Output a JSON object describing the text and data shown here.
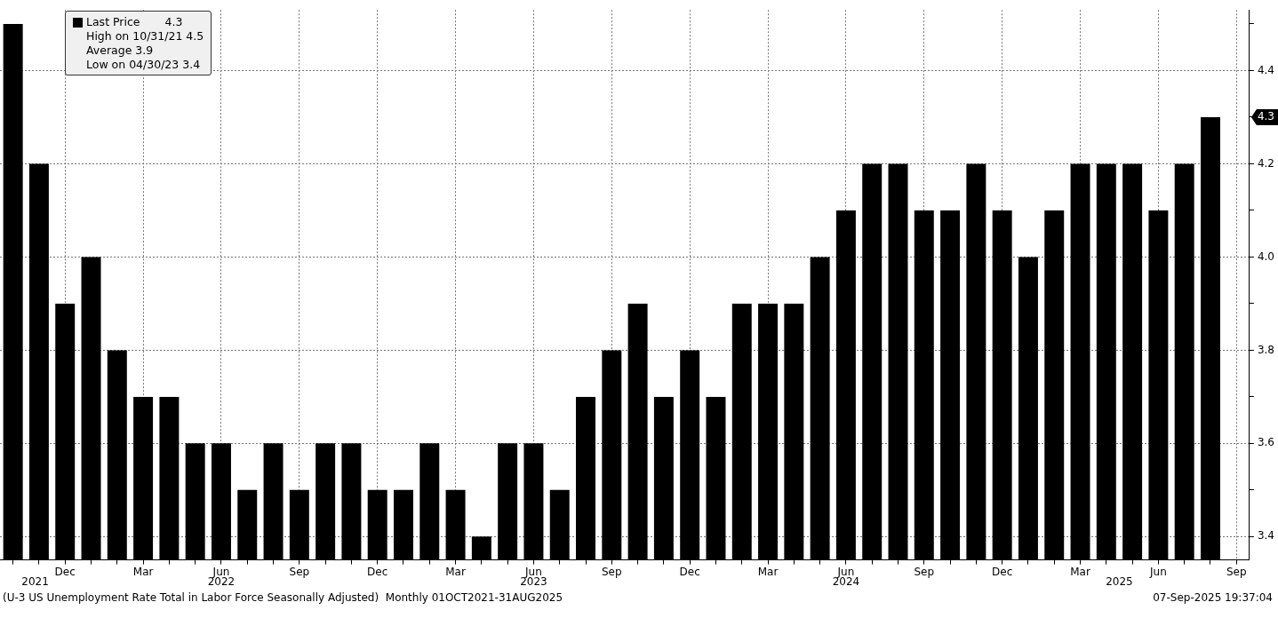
{
  "chart_data": {
    "type": "bar",
    "categories": [
      null,
      null,
      "Dec",
      null,
      null,
      "Mar",
      null,
      null,
      "Jun",
      null,
      null,
      "Sep",
      null,
      null,
      "Dec",
      null,
      null,
      "Mar",
      null,
      null,
      "Jun",
      null,
      null,
      "Sep",
      null,
      null,
      "Dec",
      null,
      null,
      "Mar",
      null,
      null,
      "Jun",
      null,
      null,
      "Sep",
      null,
      null,
      "Dec",
      null,
      null,
      "Mar",
      null,
      null,
      "Jun",
      null,
      null,
      "Sep"
    ],
    "series": [
      {
        "name": "Last Price",
        "color": "#000000",
        "values": [
          4.5,
          4.2,
          3.9,
          4.0,
          3.8,
          3.7,
          3.7,
          3.6,
          3.6,
          3.5,
          3.6,
          3.5,
          3.6,
          3.6,
          3.5,
          3.5,
          3.6,
          3.5,
          3.4,
          3.6,
          3.6,
          3.5,
          3.7,
          3.8,
          3.9,
          3.7,
          3.8,
          3.7,
          3.9,
          3.9,
          3.9,
          4.0,
          4.1,
          4.2,
          4.2,
          4.1,
          4.1,
          4.2,
          4.1,
          4.0,
          4.1,
          4.2,
          4.2,
          4.2,
          4.1,
          4.2,
          4.3,
          null
        ]
      }
    ],
    "ylim": [
      3.35,
      4.53
    ],
    "yticks": [
      {
        "value": 3.4,
        "label": "3.4"
      },
      {
        "value": 3.5,
        "label": null
      },
      {
        "value": 3.6,
        "label": "3.6"
      },
      {
        "value": 3.7,
        "label": null
      },
      {
        "value": 3.8,
        "label": "3.8"
      },
      {
        "value": 3.9,
        "label": null
      },
      {
        "value": 4.0,
        "label": "4.0"
      },
      {
        "value": 4.1,
        "label": null
      },
      {
        "value": 4.2,
        "label": "4.2"
      },
      {
        "value": 4.3,
        "label": null
      },
      {
        "value": 4.4,
        "label": "4.4"
      },
      {
        "value": 4.5,
        "label": null
      }
    ],
    "grid": true,
    "legend": "top left",
    "annotations": [
      "2021",
      "2022",
      "2023",
      "2024",
      "2025",
      "4.3",
      "High on 10/31/21 4.5",
      "Average 3.9",
      "Low on 04/30/23 3.4",
      "(U-3 US Unemployment Rate Total in Labor Force Seasonally Adjusted)  Monthly 01OCT2021-31AUG2025",
      "07-Sep-2025 19:37:04"
    ]
  }
}
